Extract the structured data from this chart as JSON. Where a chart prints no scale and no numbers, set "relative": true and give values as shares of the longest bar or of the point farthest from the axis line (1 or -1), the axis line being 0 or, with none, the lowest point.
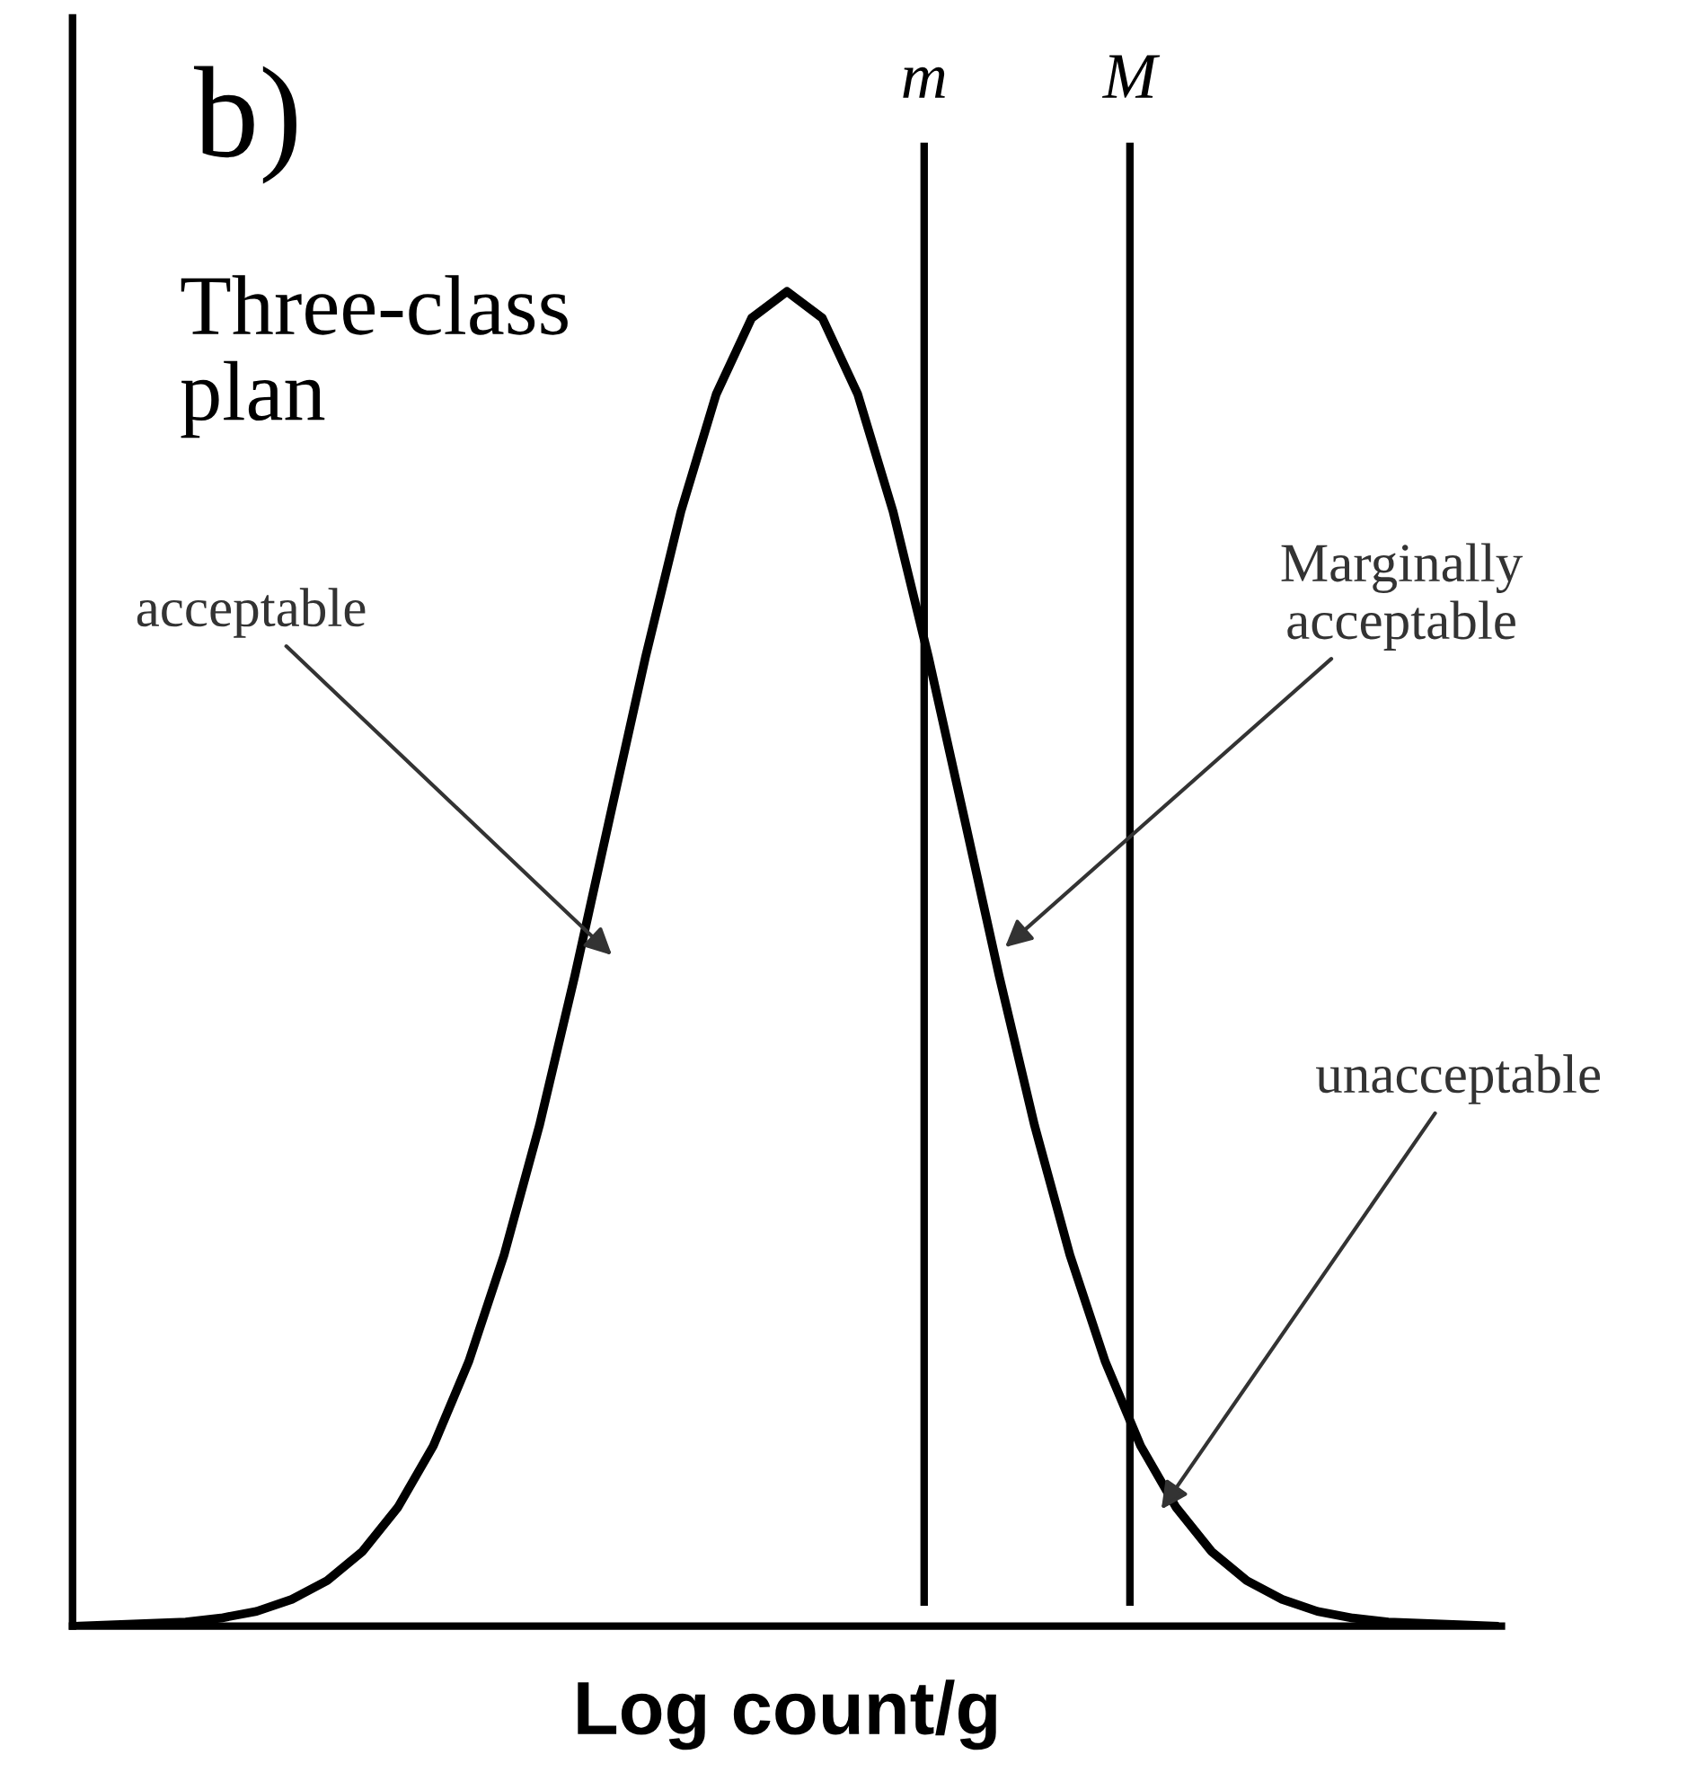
{
  "chart_data": {
    "type": "line",
    "title": "b)",
    "subtitle": "Three-class\nplan",
    "xlabel": "Log count/g",
    "relative": true,
    "categories": [
      null,
      null,
      null,
      null,
      null,
      null,
      null,
      null,
      null,
      null,
      null,
      null,
      null,
      null,
      null,
      null,
      null,
      null,
      null,
      null,
      null,
      null,
      null,
      null,
      null,
      null,
      null,
      null,
      null,
      null,
      null,
      null,
      null,
      null,
      null,
      null,
      null,
      null,
      null,
      null,
      null
    ],
    "series": [
      {
        "color": "#000000",
        "values": [
          0.0,
          0.001,
          0.002,
          0.003,
          0.006,
          0.011,
          0.02,
          0.034,
          0.056,
          0.089,
          0.135,
          0.198,
          0.278,
          0.375,
          0.487,
          0.607,
          0.726,
          0.835,
          0.923,
          0.98,
          1.0,
          0.98,
          0.923,
          0.835,
          0.726,
          0.607,
          0.487,
          0.375,
          0.278,
          0.198,
          0.135,
          0.089,
          0.056,
          0.034,
          0.02,
          0.011,
          0.006,
          0.003,
          0.002,
          0.001,
          0.0
        ]
      }
    ],
    "annotations": [
      "m",
      "M",
      "acceptable",
      "Marginally\nacceptable",
      "unacceptable"
    ],
    "marker": "none",
    "line_style": "solid",
    "legend": false
  }
}
